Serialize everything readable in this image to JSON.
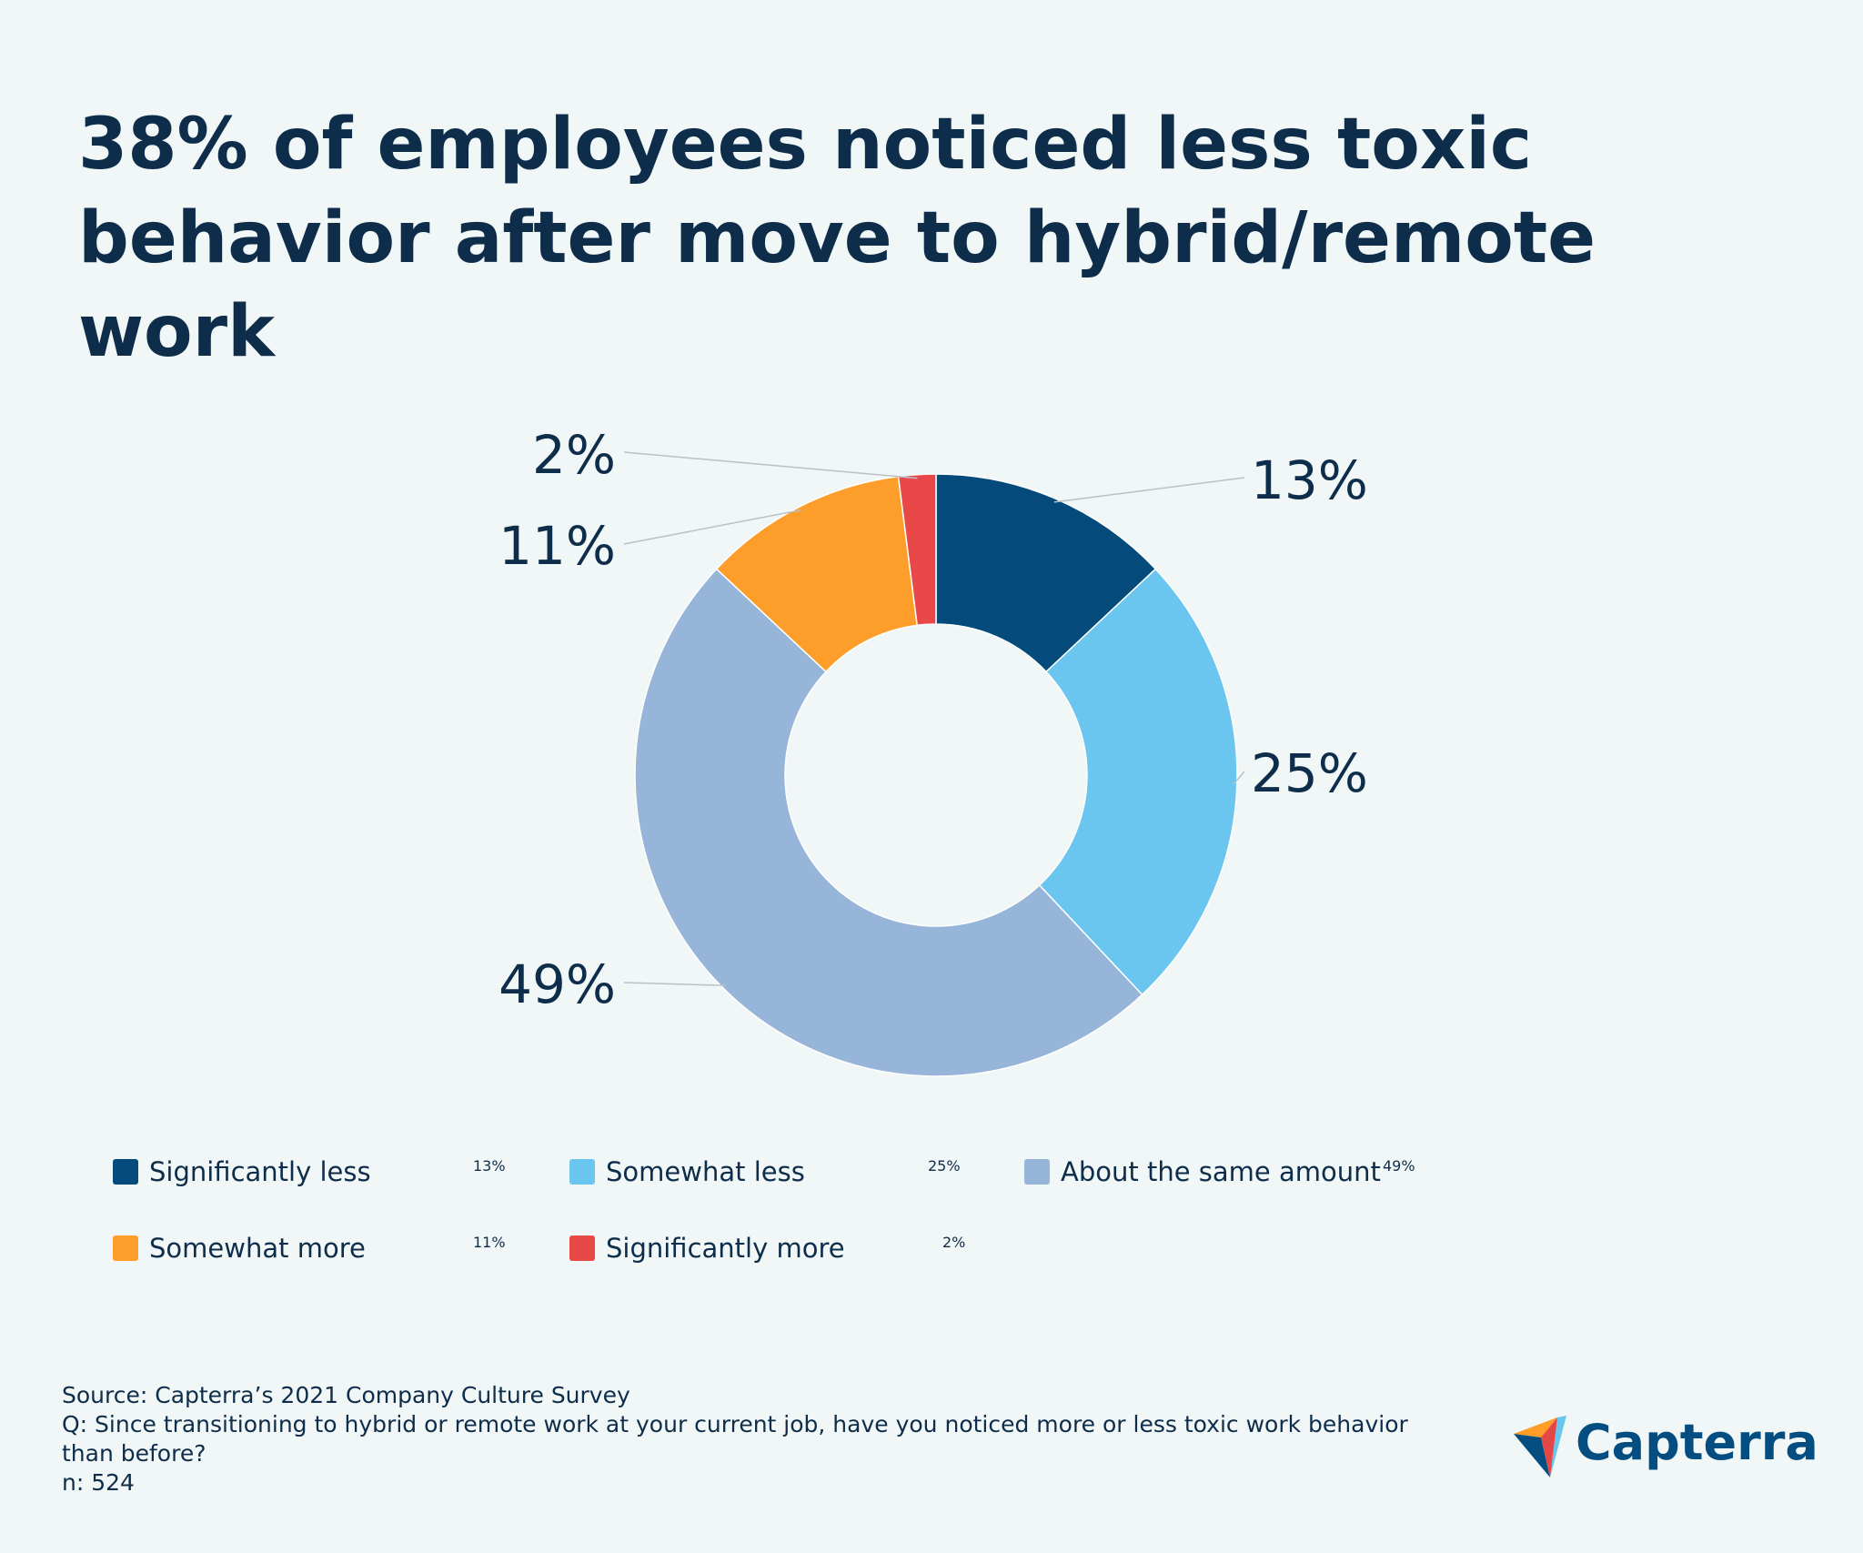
{
  "title": {
    "line1": "38% of employees noticed less toxic",
    "line2": "behavior after move to hybrid/remote work"
  },
  "chart_data": {
    "type": "pie",
    "subtype": "donut",
    "categories": [
      "Significantly less",
      "Somewhat less",
      "About the same amount",
      "Somewhat more",
      "Significantly more"
    ],
    "values": [
      13,
      25,
      49,
      11,
      2
    ],
    "value_labels": [
      "13%",
      "25%",
      "49%",
      "11%",
      "2%"
    ],
    "colors": [
      "#044b7b",
      "#6ac6ee",
      "#97b4d9",
      "#fd9e2a",
      "#e84848"
    ],
    "legend_position": "bottom"
  },
  "legend": [
    {
      "label": "Significantly less",
      "value": "13%",
      "color": "#044b7b"
    },
    {
      "label": "Somewhat less",
      "value": "25%",
      "color": "#6ac6ee"
    },
    {
      "label": "About the same amount",
      "value": "49%",
      "color": "#97b4d9"
    },
    {
      "label": "Somewhat more",
      "value": "11%",
      "color": "#fd9e2a"
    },
    {
      "label": "Significantly more",
      "value": "2%",
      "color": "#e84848"
    }
  ],
  "footer": {
    "source": "Source: Capterra’s 2021 Company Culture Survey",
    "question_line1": "Q: Since transitioning to hybrid or remote work at your current job, have you noticed more or less toxic work behavior",
    "question_line2": "than before?",
    "n": "n: 524"
  },
  "logo": {
    "text": "Capterra",
    "icon": "capterra-arrow-icon"
  }
}
